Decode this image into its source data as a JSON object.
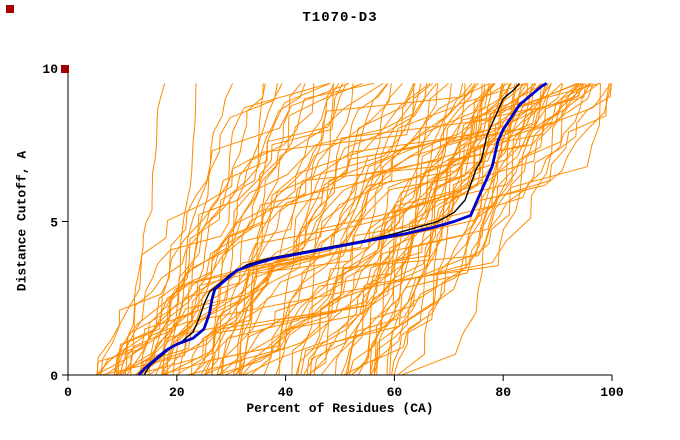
{
  "window": {
    "background": "#ffffff"
  },
  "chart_data": {
    "type": "line",
    "title": "T1070-D3",
    "xlabel": "Percent of Residues (CA)",
    "ylabel": "Distance Cutoff, A",
    "xlim": [
      0,
      100
    ],
    "ylim": [
      0,
      10
    ],
    "x_ticks": [
      0,
      20,
      40,
      60,
      80,
      100
    ],
    "y_ticks": [
      0,
      5,
      10
    ],
    "grid": false,
    "legend": "none",
    "axis_color": "#000000",
    "series": [
      {
        "name": "highlighted-model-black",
        "color": "#000000",
        "width": 1.4,
        "points": [
          [
            14,
            0
          ],
          [
            15,
            0.3
          ],
          [
            17,
            0.6
          ],
          [
            19,
            0.9
          ],
          [
            21,
            1.1
          ],
          [
            23,
            1.4
          ],
          [
            24,
            1.8
          ],
          [
            25,
            2.3
          ],
          [
            26,
            2.7
          ],
          [
            28,
            3.0
          ],
          [
            30,
            3.3
          ],
          [
            33,
            3.6
          ],
          [
            37,
            3.8
          ],
          [
            43,
            4.0
          ],
          [
            49,
            4.2
          ],
          [
            55,
            4.4
          ],
          [
            60,
            4.6
          ],
          [
            64,
            4.8
          ],
          [
            68,
            5.0
          ],
          [
            71,
            5.3
          ],
          [
            73,
            5.7
          ],
          [
            74,
            6.2
          ],
          [
            75,
            6.7
          ],
          [
            76,
            7.0
          ],
          [
            76.5,
            7.4
          ],
          [
            77,
            7.8
          ],
          [
            78,
            8.2
          ],
          [
            79,
            8.6
          ],
          [
            80,
            9.0
          ],
          [
            82,
            9.3
          ],
          [
            83,
            9.5
          ]
        ]
      },
      {
        "name": "highlighted-model-blue",
        "color": "#0000cc",
        "width": 2.8,
        "points": [
          [
            13,
            0
          ],
          [
            14,
            0.2
          ],
          [
            16,
            0.5
          ],
          [
            18,
            0.8
          ],
          [
            20,
            1.0
          ],
          [
            23,
            1.2
          ],
          [
            25,
            1.5
          ],
          [
            26,
            2.0
          ],
          [
            26.5,
            2.5
          ],
          [
            27,
            2.8
          ],
          [
            29,
            3.1
          ],
          [
            31,
            3.4
          ],
          [
            34,
            3.6
          ],
          [
            38,
            3.8
          ],
          [
            44,
            4.0
          ],
          [
            50,
            4.2
          ],
          [
            56,
            4.4
          ],
          [
            62,
            4.6
          ],
          [
            67,
            4.8
          ],
          [
            71,
            5.0
          ],
          [
            74,
            5.2
          ],
          [
            75,
            5.6
          ],
          [
            76,
            6.0
          ],
          [
            77,
            6.4
          ],
          [
            78,
            6.8
          ],
          [
            78.5,
            7.2
          ],
          [
            79,
            7.6
          ],
          [
            80,
            8.0
          ],
          [
            81.5,
            8.4
          ],
          [
            83,
            8.8
          ],
          [
            85,
            9.1
          ],
          [
            87,
            9.4
          ],
          [
            88,
            9.5
          ]
        ]
      }
    ],
    "ensemble": {
      "name": "predicted-models",
      "count": 100,
      "seed": 9,
      "color": "#ff8c00",
      "width": 1,
      "x_start_range": [
        5,
        62
      ],
      "x_end_range": [
        17,
        100
      ],
      "y_top": 9.5
    },
    "corner_markers": [
      {
        "x": 6,
        "y": 5,
        "size": 8,
        "color": "#a40000"
      },
      {
        "x": 61,
        "y": 65,
        "size": 8,
        "color": "#a40000"
      }
    ]
  }
}
